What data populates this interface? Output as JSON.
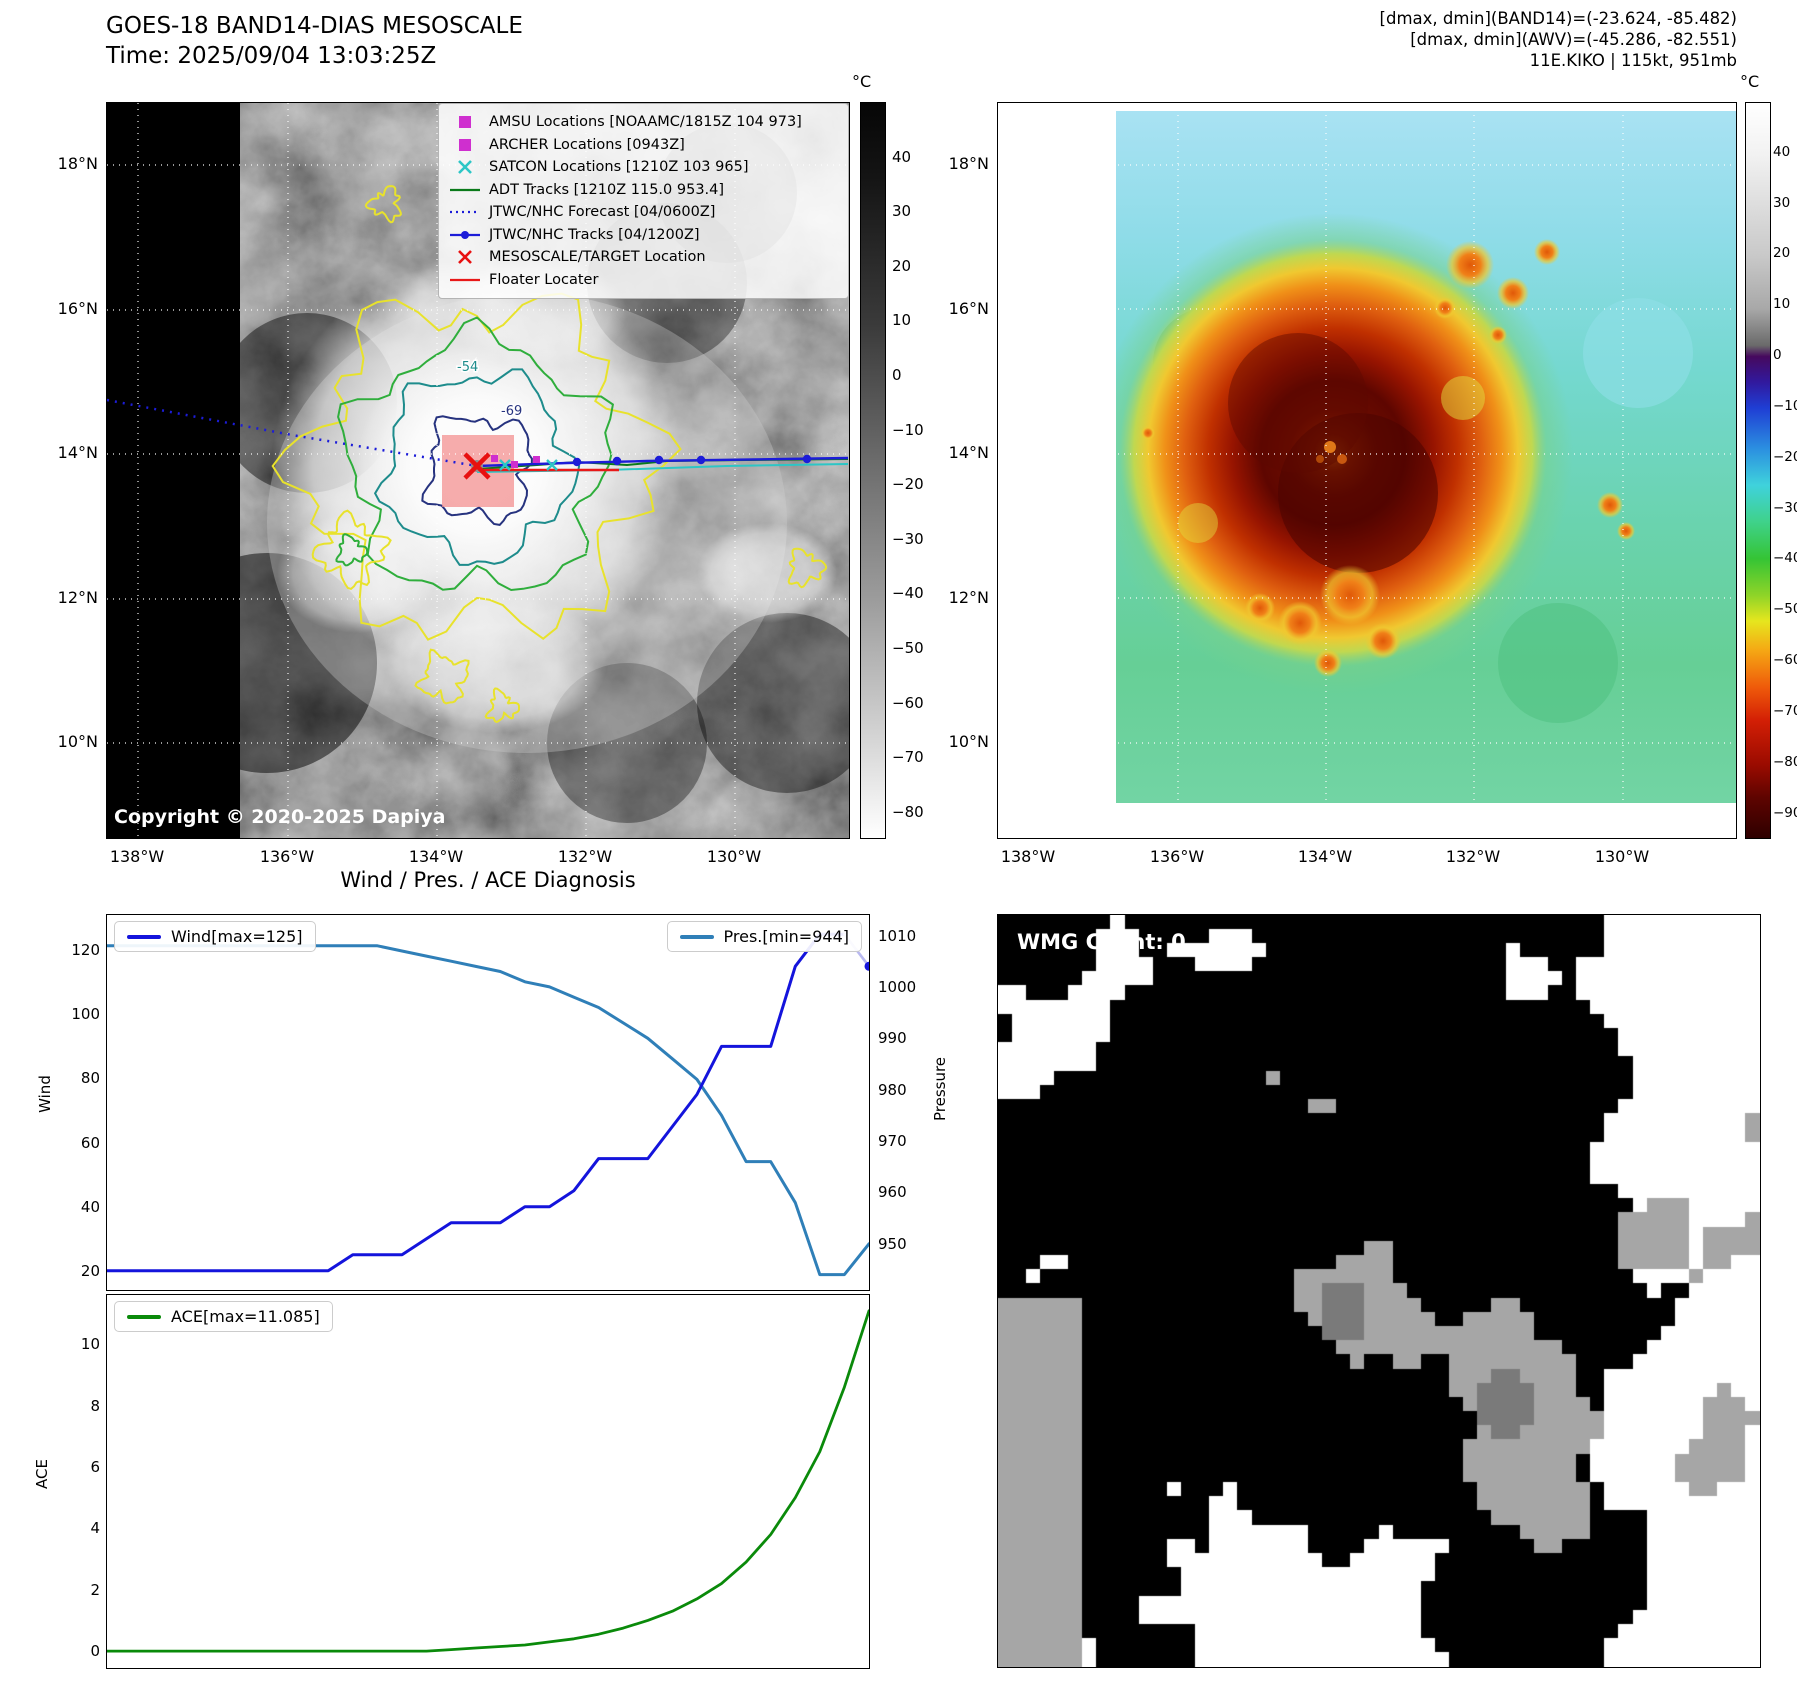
{
  "band14": {
    "title": "GOES-18 BAND14-DIAS MESOSCALE",
    "time_line": "Time: 2025/09/04 13:03:25Z",
    "copyright": "Copyright © 2020-2025 Dapiya",
    "colorbar_unit": "°C",
    "colorbar_ticks": [
      40,
      30,
      20,
      10,
      0,
      -10,
      -20,
      -30,
      -40,
      -50,
      -60,
      -70,
      -80
    ],
    "x_tick_labels": [
      "138°W",
      "136°W",
      "134°W",
      "132°W",
      "130°W"
    ],
    "y_tick_labels": [
      "18°N",
      "16°N",
      "14°N",
      "12°N",
      "10°N"
    ],
    "contour_labels": [
      "-54",
      "-69"
    ],
    "legend_items": [
      {
        "label": "AMSU Locations [NOAAMC/1815Z 104 973]",
        "marker": "square",
        "color": "#cf2fcf"
      },
      {
        "label": "ARCHER Locations [0943Z]",
        "marker": "square",
        "color": "#cf2fcf"
      },
      {
        "label": "SATCON Locations [1210Z 103 965]",
        "marker": "x",
        "color": "#2cc6c6"
      },
      {
        "label": "ADT Tracks [1210Z 115.0 953.4]",
        "marker": "line",
        "color": "#0a7a1a"
      },
      {
        "label": "JTWC/NHC Forecast [04/0600Z]",
        "marker": "dotted-line",
        "color": "#1c1cd8"
      },
      {
        "label": "JTWC/NHC Tracks [04/1200Z]",
        "marker": "line-dot",
        "color": "#1c1cd8"
      },
      {
        "label": "MESOSCALE/TARGET Location",
        "marker": "x",
        "color": "#e81010"
      },
      {
        "label": "Floater Locater",
        "marker": "line",
        "color": "#e81818"
      }
    ]
  },
  "enhanced": {
    "header_lines": [
      "[dmax, dmin](BAND14)=(-23.624, -85.482)",
      "[dmax, dmin](AWV)=(-45.286, -82.551)",
      "11E.KIKO | 115kt, 951mb"
    ],
    "colorbar_unit": "°C",
    "colorbar_ticks": [
      40,
      30,
      20,
      10,
      0,
      -10,
      -20,
      -30,
      -40,
      -50,
      -60,
      -70,
      -80,
      -90
    ],
    "x_tick_labels": [
      "138°W",
      "136°W",
      "134°W",
      "132°W",
      "130°W"
    ],
    "y_tick_labels": [
      "18°N",
      "16°N",
      "14°N",
      "12°N",
      "10°N"
    ]
  },
  "chart_data": [
    {
      "type": "line",
      "title": "Wind / Pres. / ACE Diagnosis",
      "x": [
        0,
        1,
        2,
        3,
        4,
        5,
        6,
        7,
        8,
        9,
        10,
        11,
        12,
        13,
        14,
        15,
        16,
        17,
        18,
        19,
        20,
        21,
        22,
        23,
        24,
        25,
        26,
        27,
        28,
        29,
        30,
        31
      ],
      "xlim": [
        0,
        31
      ],
      "series": [
        {
          "name": "Wind[max=125]",
          "axis": "left",
          "color": "#1414dc",
          "values": [
            20,
            20,
            20,
            20,
            20,
            20,
            20,
            20,
            20,
            20,
            25,
            25,
            25,
            30,
            35,
            35,
            35,
            40,
            40,
            45,
            55,
            55,
            55,
            65,
            75,
            90,
            90,
            90,
            115,
            125,
            125,
            115
          ]
        },
        {
          "name": "Pres.[min=944]",
          "axis": "right",
          "color": "#2f7fb8",
          "values": [
            1008,
            1008,
            1008,
            1008,
            1008,
            1008,
            1008,
            1008,
            1008,
            1008,
            1008,
            1008,
            1007,
            1006,
            1005,
            1004,
            1003,
            1001,
            1000,
            998,
            996,
            993,
            990,
            986,
            982,
            975,
            966,
            966,
            958,
            944,
            944,
            950
          ]
        }
      ],
      "ylabel_left": "Wind",
      "ylabel_right": "Pressure",
      "yticks_left": [
        20,
        40,
        60,
        80,
        100,
        120
      ],
      "yticks_right": [
        950,
        960,
        970,
        980,
        990,
        1000,
        1010
      ],
      "ylim_left": [
        14,
        131
      ],
      "ylim_right": [
        941,
        1014
      ],
      "grid": false,
      "legend_position": "inside top-left and top-right"
    },
    {
      "type": "line",
      "x": [
        0,
        1,
        2,
        3,
        4,
        5,
        6,
        7,
        8,
        9,
        10,
        11,
        12,
        13,
        14,
        15,
        16,
        17,
        18,
        19,
        20,
        21,
        22,
        23,
        24,
        25,
        26,
        27,
        28,
        29,
        30,
        31
      ],
      "xlim": [
        0,
        31
      ],
      "series": [
        {
          "name": "ACE[max=11.085]",
          "color": "#0a8a0a",
          "values": [
            0,
            0,
            0,
            0,
            0,
            0,
            0,
            0,
            0,
            0,
            0,
            0,
            0,
            0,
            0.05,
            0.1,
            0.15,
            0.2,
            0.3,
            0.4,
            0.55,
            0.75,
            1.0,
            1.3,
            1.7,
            2.2,
            2.9,
            3.8,
            5.0,
            6.5,
            8.6,
            11.085
          ]
        }
      ],
      "ylabel": "ACE",
      "yticks": [
        0,
        2,
        4,
        6,
        8,
        10
      ],
      "ylim": [
        -0.55,
        11.6
      ],
      "grid": false,
      "legend_position": "inside top-left"
    }
  ],
  "wmg": {
    "count_label": "WMG Count: 0"
  }
}
